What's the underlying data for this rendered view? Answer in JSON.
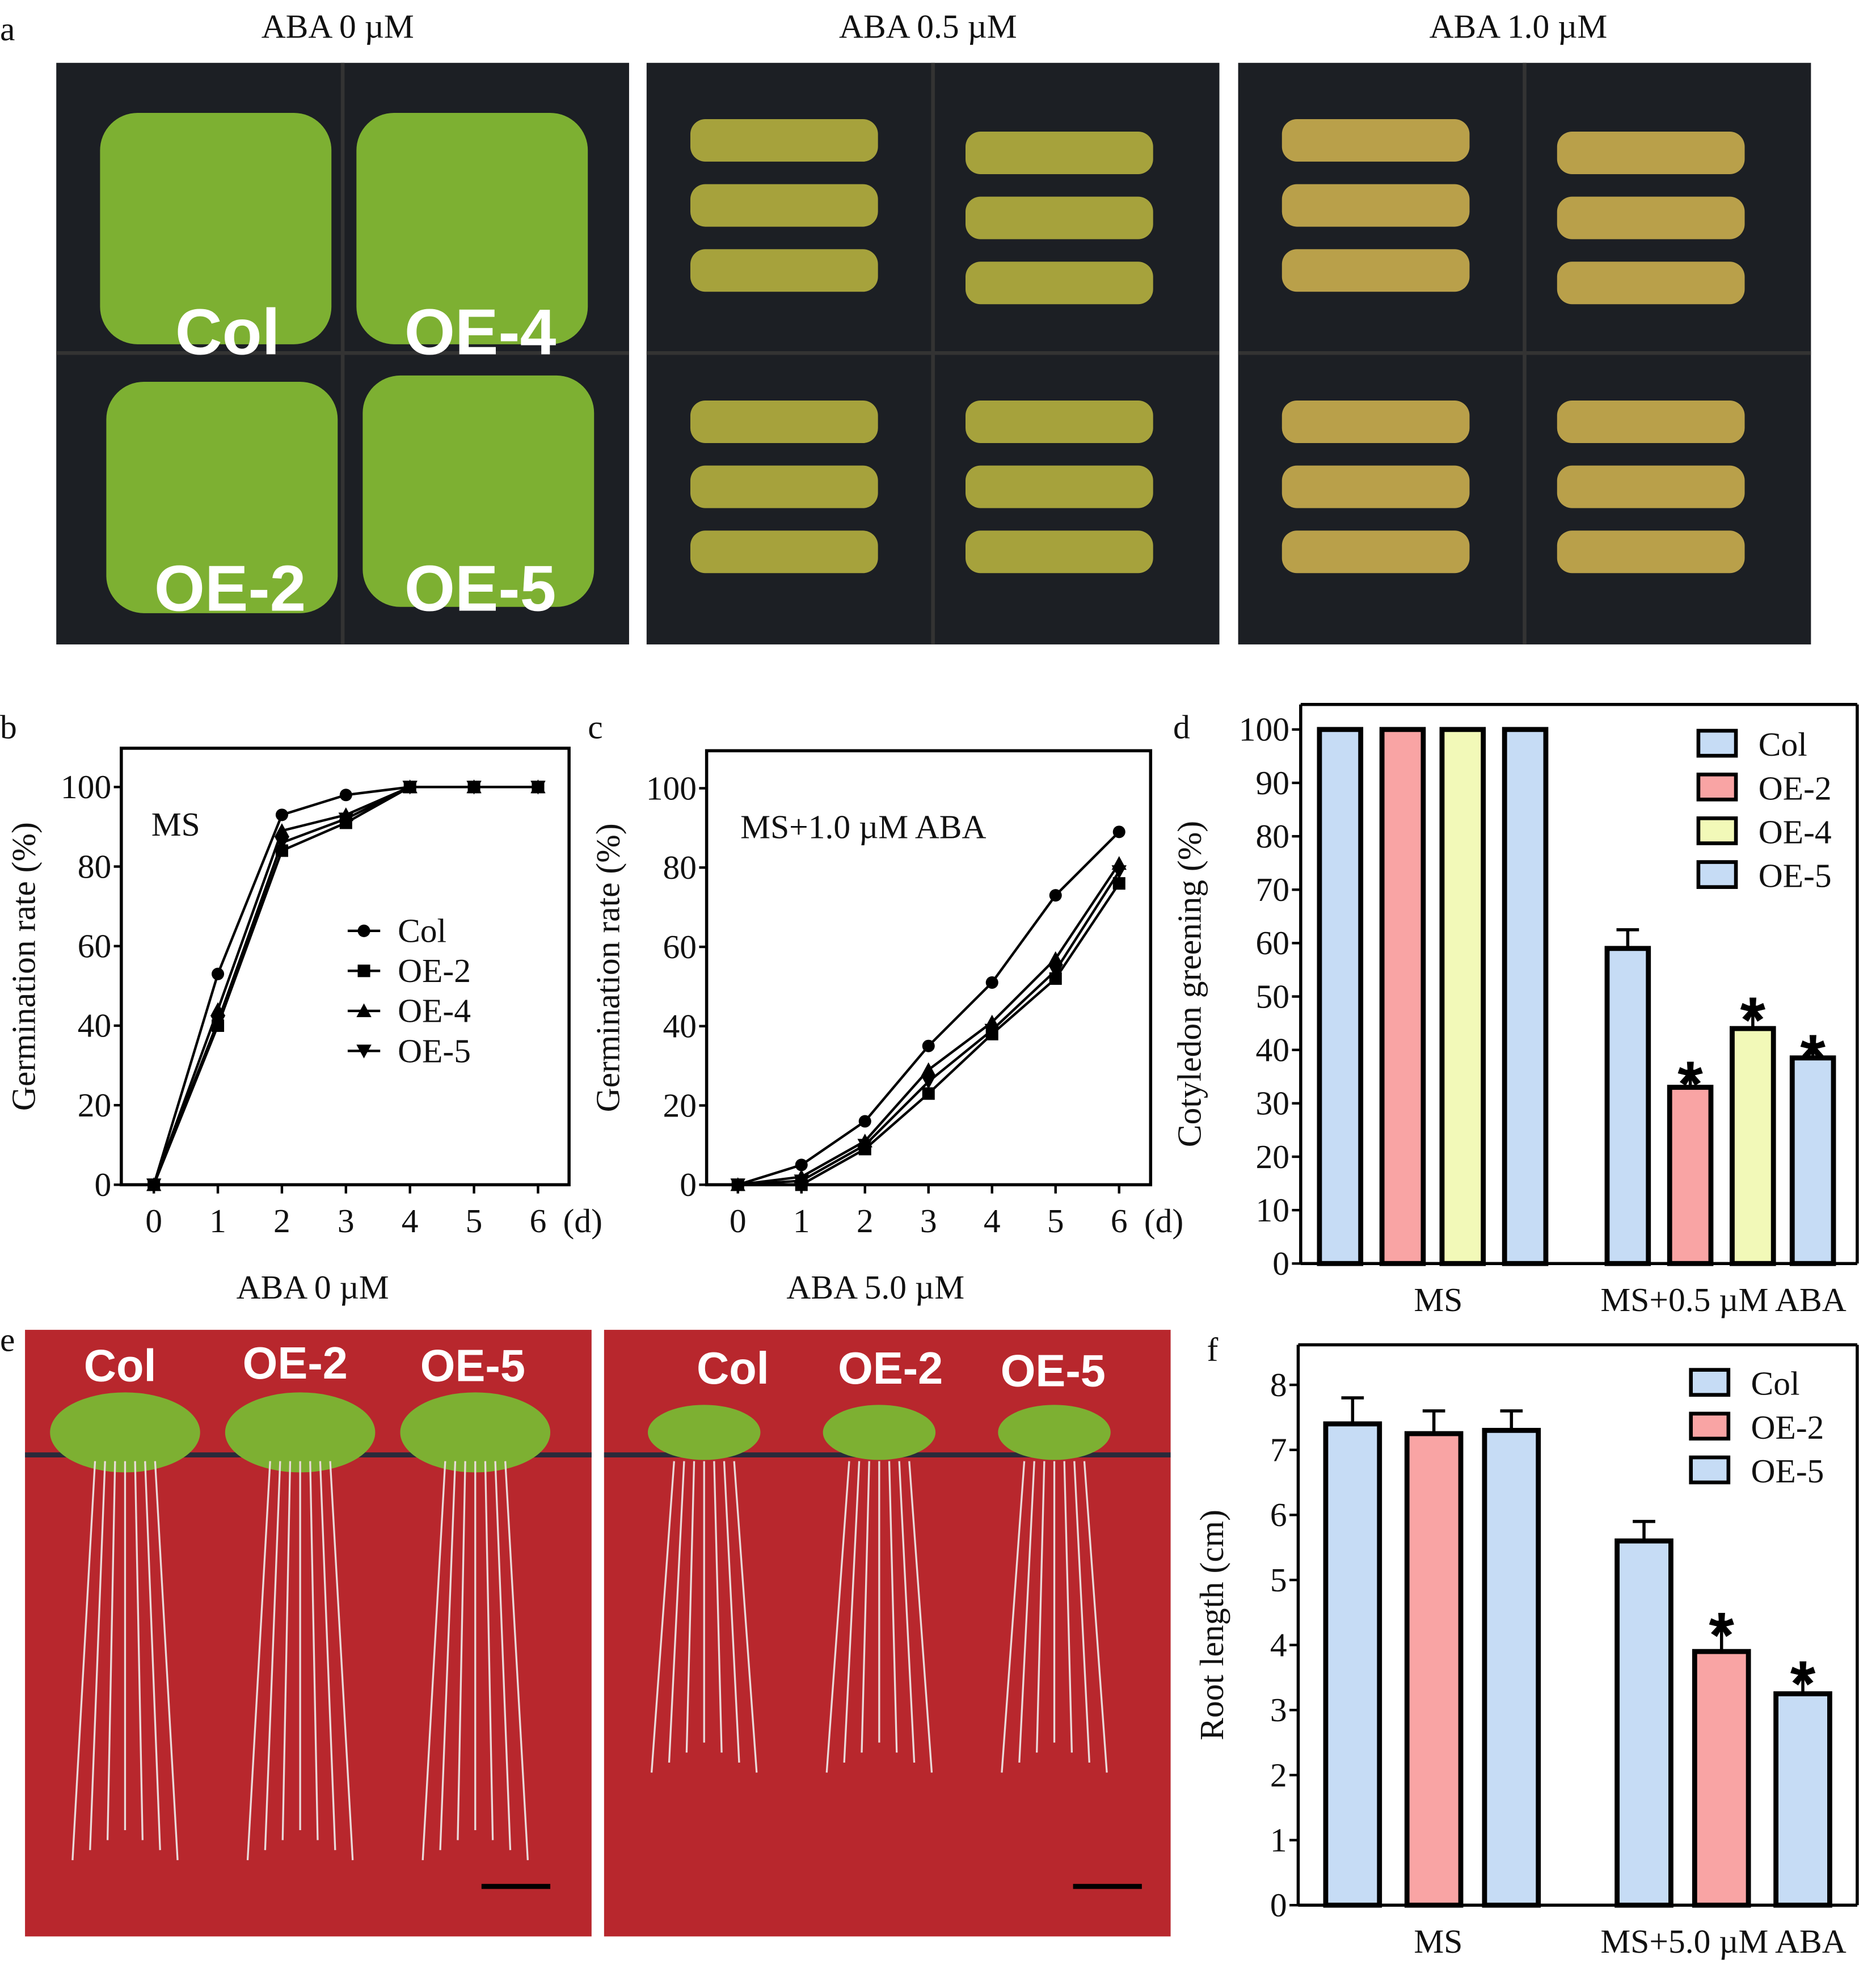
{
  "panel_letters": [
    "a",
    "b",
    "c",
    "d",
    "e",
    "f"
  ],
  "panel_a": {
    "titles": [
      "ABA 0 µM",
      "ABA 0.5 µM",
      "ABA 1.0 µM"
    ],
    "plate_labels": [
      "Col",
      "OE-4",
      "OE-2",
      "OE-5"
    ]
  },
  "panel_e": {
    "titles": [
      "ABA 0 µM",
      "ABA 5.0 µM"
    ],
    "plate_labels": [
      "Col",
      "OE-2",
      "OE-5"
    ]
  },
  "colors": {
    "Col": "#c6dcf5",
    "OE-2": "#f9a4a4",
    "OE-4": "#f2f9b8",
    "OE-5": "#c6dcf5",
    "plate_bg": "#1c1f24",
    "agar_red": "#b8272d",
    "seedling": "#7db032"
  },
  "chart_data": [
    {
      "type": "line",
      "panel": "b",
      "annotation": "MS",
      "xlabel": "(d)",
      "ylabel": "Germination rate (%)",
      "x": [
        0,
        1,
        2,
        3,
        4,
        5,
        6
      ],
      "ylim": [
        0,
        110
      ],
      "yticks": [
        0,
        20,
        40,
        60,
        80,
        100
      ],
      "legend": "center-right",
      "series": [
        {
          "name": "Col",
          "marker": "circle",
          "values": [
            0,
            53,
            93,
            98,
            100,
            100,
            100
          ]
        },
        {
          "name": "OE-2",
          "marker": "square",
          "values": [
            0,
            40,
            84,
            91,
            100,
            100,
            100
          ]
        },
        {
          "name": "OE-4",
          "marker": "triangle-up",
          "values": [
            0,
            44,
            89,
            93,
            100,
            100,
            100
          ]
        },
        {
          "name": "OE-5",
          "marker": "triangle-down",
          "values": [
            0,
            41,
            86,
            92,
            100,
            100,
            100
          ]
        }
      ]
    },
    {
      "type": "line",
      "panel": "c",
      "annotation": "MS+1.0 µM ABA",
      "xlabel": "(d)",
      "ylabel": "Germination rate (%)",
      "x": [
        0,
        1,
        2,
        3,
        4,
        5,
        6
      ],
      "ylim": [
        0,
        110
      ],
      "yticks": [
        0,
        20,
        40,
        60,
        80,
        100
      ],
      "series": [
        {
          "name": "Col",
          "marker": "circle",
          "values": [
            0,
            5,
            16,
            35,
            51,
            73,
            89
          ]
        },
        {
          "name": "OE-2",
          "marker": "square",
          "values": [
            0,
            0,
            9,
            23,
            38,
            52,
            76
          ]
        },
        {
          "name": "OE-4",
          "marker": "triangle-up",
          "values": [
            0,
            2,
            11,
            29,
            41,
            57,
            81
          ]
        },
        {
          "name": "OE-5",
          "marker": "triangle-down",
          "values": [
            0,
            1,
            10,
            26,
            39,
            54,
            79
          ]
        }
      ]
    },
    {
      "type": "bar",
      "panel": "d",
      "ylabel": "Cotyledon greening (%)",
      "categories": [
        "MS",
        "MS+0.5 µM ABA"
      ],
      "ylim": [
        0,
        100
      ],
      "yticks": [
        0,
        10,
        20,
        30,
        40,
        50,
        60,
        70,
        80,
        90,
        100
      ],
      "legend": "top-right",
      "series": [
        {
          "name": "Col",
          "values": [
            100,
            59
          ],
          "errors": [
            0,
            3.5
          ],
          "sig": [
            false,
            false
          ]
        },
        {
          "name": "OE-2",
          "values": [
            100,
            33
          ],
          "errors": [
            0,
            3
          ],
          "sig": [
            false,
            true
          ]
        },
        {
          "name": "OE-4",
          "values": [
            100,
            44
          ],
          "errors": [
            0,
            4
          ],
          "sig": [
            false,
            true
          ]
        },
        {
          "name": "OE-5",
          "values": [
            100,
            38.5
          ],
          "errors": [
            0,
            2.5
          ],
          "sig": [
            false,
            true
          ]
        }
      ],
      "sig_mark": "*"
    },
    {
      "type": "bar",
      "panel": "f",
      "ylabel": "Root length (cm)",
      "categories": [
        "MS",
        "MS+5.0 µM ABA"
      ],
      "ylim": [
        0,
        8
      ],
      "yticks": [
        0,
        1,
        2,
        3,
        4,
        5,
        6,
        7,
        8
      ],
      "legend": "top-right",
      "series": [
        {
          "name": "Col",
          "values": [
            7.4,
            5.6
          ],
          "errors": [
            0.4,
            0.3
          ],
          "sig": [
            false,
            false
          ]
        },
        {
          "name": "OE-2",
          "values": [
            7.25,
            3.9
          ],
          "errors": [
            0.35,
            0.45
          ],
          "sig": [
            false,
            true
          ]
        },
        {
          "name": "OE-5",
          "values": [
            7.3,
            3.25
          ],
          "errors": [
            0.3,
            0.35
          ],
          "sig": [
            false,
            true
          ]
        }
      ],
      "sig_mark": "*"
    }
  ]
}
